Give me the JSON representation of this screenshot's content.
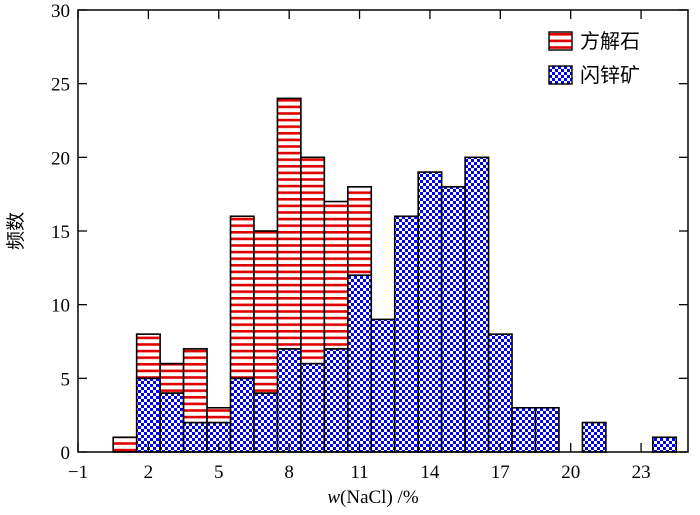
{
  "chart_data": {
    "type": "bar",
    "stacked": true,
    "xlabel_italic": "w",
    "xlabel_rest": "(NaCl) /%",
    "ylabel": "频数",
    "xlim": [
      -1,
      25
    ],
    "ylim": [
      0,
      30
    ],
    "xticks": [
      -1,
      2,
      5,
      8,
      11,
      14,
      17,
      20,
      23
    ],
    "xtick_labels": [
      "−1",
      "2",
      "5",
      "8",
      "11",
      "14",
      "17",
      "20",
      "23"
    ],
    "yticks": [
      0,
      5,
      10,
      15,
      20,
      25,
      30
    ],
    "bin_width": 1,
    "bin_starts": [
      0.5,
      1.5,
      2.5,
      3.5,
      4.5,
      5.5,
      6.5,
      7.5,
      8.5,
      9.5,
      10.5,
      11.5,
      12.5,
      13.5,
      14.5,
      15.5,
      16.5,
      17.5,
      18.5,
      19.5,
      20.5,
      21.5,
      22.5,
      23.5
    ],
    "legend_position": "top-right",
    "series": [
      {
        "name": "闪锌矿",
        "pattern": "checker",
        "color": "#0000ee",
        "values": [
          0,
          5,
          4,
          2,
          2,
          5,
          4,
          7,
          6,
          7,
          12,
          9,
          16,
          19,
          18,
          20,
          8,
          3,
          3,
          0,
          2,
          0,
          0,
          1
        ]
      },
      {
        "name": "方解石",
        "pattern": "hstripe",
        "color": "#e00000",
        "values": [
          1,
          3,
          2,
          5,
          1,
          11,
          11,
          17,
          14,
          10,
          6,
          0,
          0,
          0,
          0,
          0,
          0,
          0,
          0,
          0,
          0,
          0,
          0,
          0
        ]
      }
    ],
    "legend_order": [
      "方解石",
      "闪锌矿"
    ]
  }
}
